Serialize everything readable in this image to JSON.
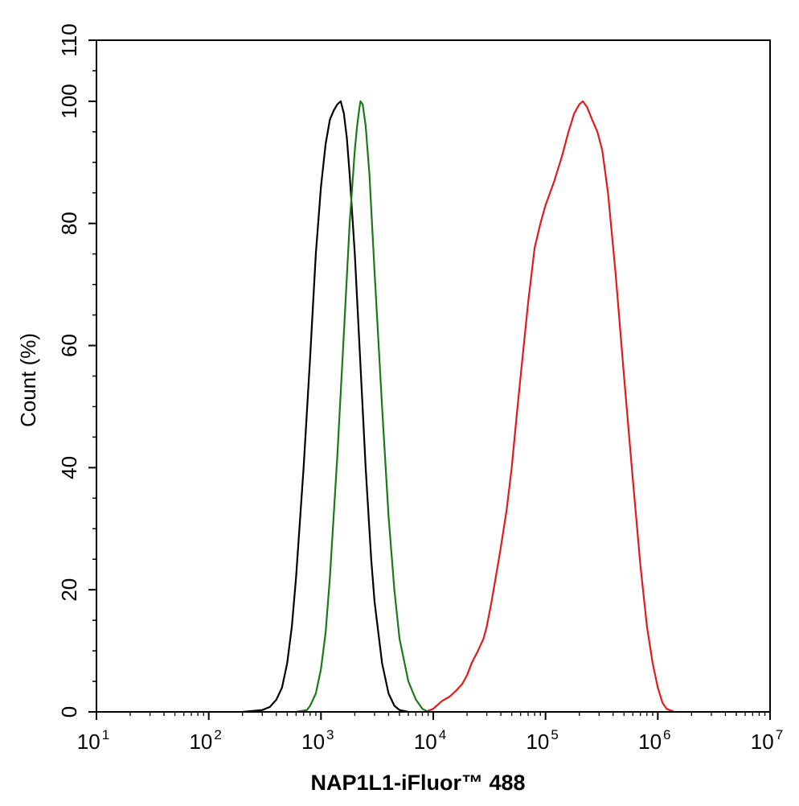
{
  "chart_data": {
    "type": "line",
    "title": "",
    "xlabel": "NAP1L1-iFluor™ 488",
    "ylabel": "Count  (%)",
    "xscale": "log",
    "xlim": [
      10,
      10000000
    ],
    "ylim": [
      0,
      110
    ],
    "grid": false,
    "legend": "none",
    "x_ticks": [
      {
        "base": "10",
        "exp": "1",
        "value": 10
      },
      {
        "base": "10",
        "exp": "2",
        "value": 100
      },
      {
        "base": "10",
        "exp": "3",
        "value": 1000
      },
      {
        "base": "10",
        "exp": "4",
        "value": 10000
      },
      {
        "base": "10",
        "exp": "5",
        "value": 100000
      },
      {
        "base": "10",
        "exp": "6",
        "value": 1000000
      },
      {
        "base": "10",
        "exp": "7",
        "value": 10000000
      }
    ],
    "y_ticks": [
      "0",
      "20",
      "40",
      "60",
      "80",
      "100",
      "110"
    ],
    "series": [
      {
        "color": "#000000",
        "points": [
          [
            200,
            0
          ],
          [
            300,
            0.3
          ],
          [
            350,
            0.8
          ],
          [
            400,
            2
          ],
          [
            450,
            4
          ],
          [
            500,
            8
          ],
          [
            550,
            14
          ],
          [
            600,
            22
          ],
          [
            700,
            40
          ],
          [
            800,
            58
          ],
          [
            900,
            75
          ],
          [
            1000,
            86
          ],
          [
            1100,
            93
          ],
          [
            1200,
            97
          ],
          [
            1300,
            98.5
          ],
          [
            1400,
            99.5
          ],
          [
            1500,
            100
          ],
          [
            1600,
            98
          ],
          [
            1700,
            94
          ],
          [
            1800,
            88
          ],
          [
            2000,
            75
          ],
          [
            2200,
            60
          ],
          [
            2500,
            40
          ],
          [
            2800,
            25
          ],
          [
            3000,
            18
          ],
          [
            3500,
            8
          ],
          [
            4000,
            3
          ],
          [
            4500,
            1
          ],
          [
            5000,
            0.3
          ],
          [
            6000,
            0
          ]
        ]
      },
      {
        "color": "#1a7a1a",
        "points": [
          [
            600,
            0
          ],
          [
            750,
            0.3
          ],
          [
            800,
            1
          ],
          [
            900,
            3
          ],
          [
            1000,
            7
          ],
          [
            1100,
            13
          ],
          [
            1200,
            22
          ],
          [
            1400,
            42
          ],
          [
            1600,
            62
          ],
          [
            1800,
            80
          ],
          [
            2000,
            92
          ],
          [
            2100,
            96
          ],
          [
            2200,
            99
          ],
          [
            2250,
            100
          ],
          [
            2350,
            99.5
          ],
          [
            2500,
            96
          ],
          [
            2700,
            88
          ],
          [
            3000,
            72
          ],
          [
            3500,
            50
          ],
          [
            4000,
            32
          ],
          [
            4500,
            20
          ],
          [
            5000,
            12
          ],
          [
            6000,
            5
          ],
          [
            7000,
            2
          ],
          [
            8000,
            0.5
          ],
          [
            9000,
            0
          ]
        ]
      },
      {
        "color": "#e31a1c",
        "points": [
          [
            8500,
            0
          ],
          [
            10000,
            0.5
          ],
          [
            11000,
            1.2
          ],
          [
            12000,
            1.8
          ],
          [
            14000,
            2.5
          ],
          [
            16000,
            3.5
          ],
          [
            18000,
            4.5
          ],
          [
            20000,
            6
          ],
          [
            22000,
            8
          ],
          [
            25000,
            10
          ],
          [
            28000,
            12
          ],
          [
            30000,
            14
          ],
          [
            33000,
            18
          ],
          [
            36000,
            22
          ],
          [
            40000,
            27
          ],
          [
            45000,
            33
          ],
          [
            50000,
            40
          ],
          [
            55000,
            48
          ],
          [
            60000,
            55
          ],
          [
            70000,
            67
          ],
          [
            80000,
            76
          ],
          [
            90000,
            80
          ],
          [
            100000,
            83
          ],
          [
            120000,
            87
          ],
          [
            140000,
            91
          ],
          [
            160000,
            95
          ],
          [
            180000,
            98
          ],
          [
            200000,
            99.5
          ],
          [
            215000,
            100
          ],
          [
            235000,
            99
          ],
          [
            260000,
            97
          ],
          [
            290000,
            95
          ],
          [
            320000,
            92
          ],
          [
            360000,
            85
          ],
          [
            420000,
            72
          ],
          [
            500000,
            55
          ],
          [
            600000,
            38
          ],
          [
            700000,
            24
          ],
          [
            800000,
            14
          ],
          [
            900000,
            8
          ],
          [
            1000000,
            4
          ],
          [
            1100000,
            1.5
          ],
          [
            1200000,
            0.5
          ],
          [
            1400000,
            0
          ]
        ]
      }
    ]
  }
}
